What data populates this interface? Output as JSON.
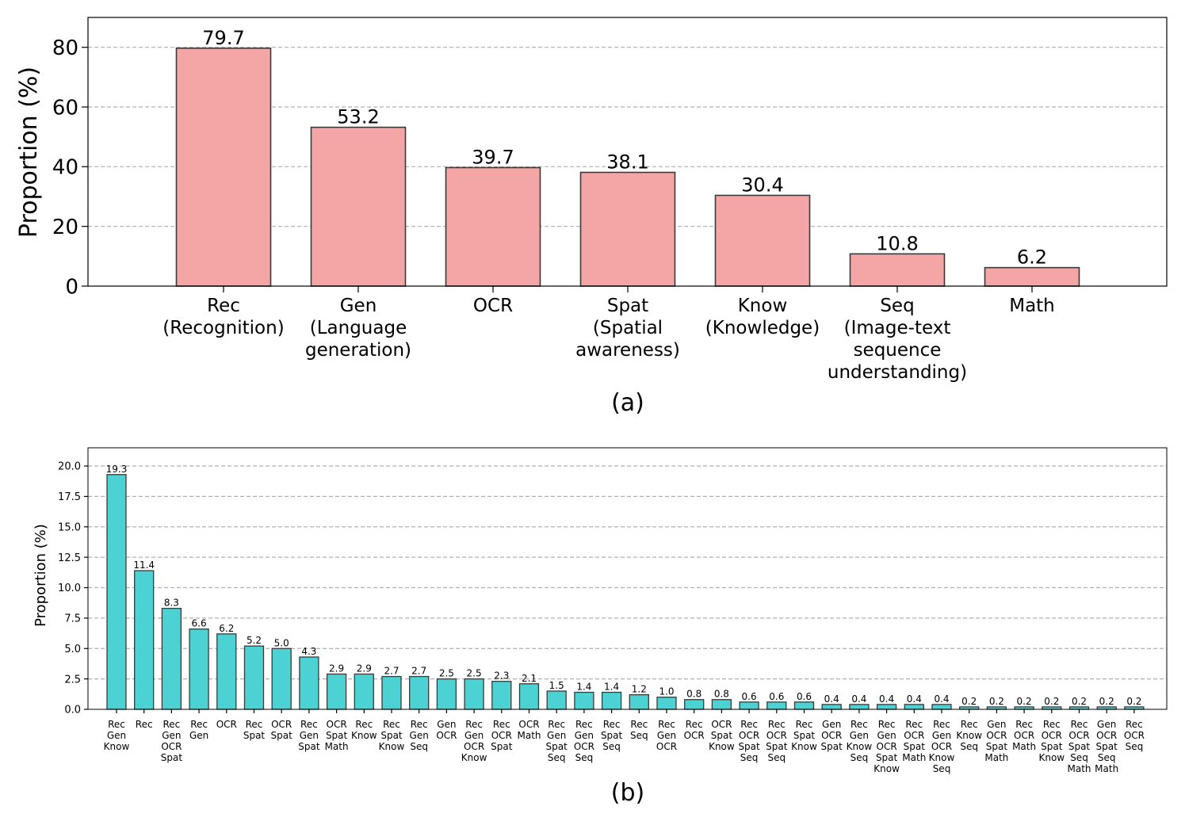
{
  "chart_data": [
    {
      "type": "bar",
      "caption": "(a)",
      "ylabel": "Proportion (%)",
      "ylim": [
        0,
        90
      ],
      "yticks": [
        "0",
        "20",
        "40",
        "60",
        "80"
      ],
      "grid": "y-dashed",
      "bar_color": "#f4a6a6",
      "categories": [
        [
          "Rec",
          "(Recognition)"
        ],
        [
          "Gen",
          "(Language",
          "generation)"
        ],
        [
          "OCR"
        ],
        [
          "Spat",
          "(Spatial",
          "awareness)"
        ],
        [
          "Know",
          "(Knowledge)"
        ],
        [
          "Seq",
          "(Image-text",
          "sequence",
          "understanding)"
        ],
        [
          "Math"
        ]
      ],
      "values": [
        79.7,
        53.2,
        39.7,
        38.1,
        30.4,
        10.8,
        6.2
      ],
      "value_labels": [
        "79.7",
        "53.2",
        "39.7",
        "38.1",
        "30.4",
        "10.8",
        "6.2"
      ]
    },
    {
      "type": "bar",
      "caption": "(b)",
      "ylabel": "Proportion (%)",
      "ylim": [
        0,
        21.5
      ],
      "yticks": [
        "0.0",
        "2.5",
        "5.0",
        "7.5",
        "10.0",
        "12.5",
        "15.0",
        "17.5",
        "20.0"
      ],
      "grid": "y-dashed",
      "bar_color": "#4cd2d2",
      "categories": [
        [
          "Rec",
          "Gen",
          "Know"
        ],
        [
          "Rec"
        ],
        [
          "Rec",
          "Gen",
          "OCR",
          "Spat"
        ],
        [
          "Rec",
          "Gen"
        ],
        [
          "OCR"
        ],
        [
          "Rec",
          "Spat"
        ],
        [
          "OCR",
          "Spat"
        ],
        [
          "Rec",
          "Gen",
          "Spat"
        ],
        [
          "OCR",
          "Spat",
          "Math"
        ],
        [
          "Rec",
          "Know"
        ],
        [
          "Rec",
          "Spat",
          "Know"
        ],
        [
          "Rec",
          "Gen",
          "Seq"
        ],
        [
          "Gen",
          "OCR"
        ],
        [
          "Rec",
          "Gen",
          "OCR",
          "Know"
        ],
        [
          "Rec",
          "OCR",
          "Spat"
        ],
        [
          "OCR",
          "Math"
        ],
        [
          "Rec",
          "Gen",
          "Spat",
          "Seq"
        ],
        [
          "Rec",
          "Gen",
          "OCR",
          "Seq"
        ],
        [
          "Rec",
          "Spat",
          "Seq"
        ],
        [
          "Rec",
          "Seq"
        ],
        [
          "Rec",
          "Gen",
          "OCR"
        ],
        [
          "Rec",
          "OCR"
        ],
        [
          "OCR",
          "Spat",
          "Know"
        ],
        [
          "Rec",
          "OCR",
          "Spat",
          "Seq"
        ],
        [
          "Rec",
          "OCR",
          "Spat",
          "Seq"
        ],
        [
          "Rec",
          "Spat",
          "Know"
        ],
        [
          "Gen",
          "OCR",
          "Spat"
        ],
        [
          "Rec",
          "Gen",
          "Know",
          "Seq"
        ],
        [
          "Rec",
          "Gen",
          "OCR",
          "Spat",
          "Know"
        ],
        [
          "Rec",
          "OCR",
          "Spat",
          "Math"
        ],
        [
          "Rec",
          "Gen",
          "OCR",
          "Know",
          "Seq"
        ],
        [
          "Rec",
          "Know",
          "Seq"
        ],
        [
          "Gen",
          "OCR",
          "Spat",
          "Math"
        ],
        [
          "Rec",
          "OCR",
          "Math"
        ],
        [
          "Rec",
          "OCR",
          "Spat",
          "Know"
        ],
        [
          "Rec",
          "OCR",
          "Spat",
          "Seq",
          "Math"
        ],
        [
          "Gen",
          "OCR",
          "Spat",
          "Seq",
          "Math"
        ],
        [
          "Rec",
          "OCR",
          "Seq"
        ]
      ],
      "values": [
        19.3,
        11.4,
        8.3,
        6.6,
        6.2,
        5.2,
        5.0,
        4.3,
        2.9,
        2.9,
        2.7,
        2.7,
        2.5,
        2.5,
        2.3,
        2.1,
        1.5,
        1.4,
        1.4,
        1.2,
        1.0,
        0.8,
        0.8,
        0.6,
        0.6,
        0.6,
        0.4,
        0.4,
        0.4,
        0.4,
        0.4,
        0.2,
        0.2,
        0.2,
        0.2,
        0.2,
        0.2,
        0.2
      ],
      "value_labels": [
        "19.3",
        "11.4",
        "8.3",
        "6.6",
        "6.2",
        "5.2",
        "5.0",
        "4.3",
        "2.9",
        "2.9",
        "2.7",
        "2.7",
        "2.5",
        "2.5",
        "2.3",
        "2.1",
        "1.5",
        "1.4",
        "1.4",
        "1.2",
        "1.0",
        "0.8",
        "0.8",
        "0.6",
        "0.6",
        "0.6",
        "0.4",
        "0.4",
        "0.4",
        "0.4",
        "0.4",
        "0.2",
        "0.2",
        "0.2",
        "0.2",
        "0.2",
        "0.2",
        "0.2"
      ]
    }
  ]
}
